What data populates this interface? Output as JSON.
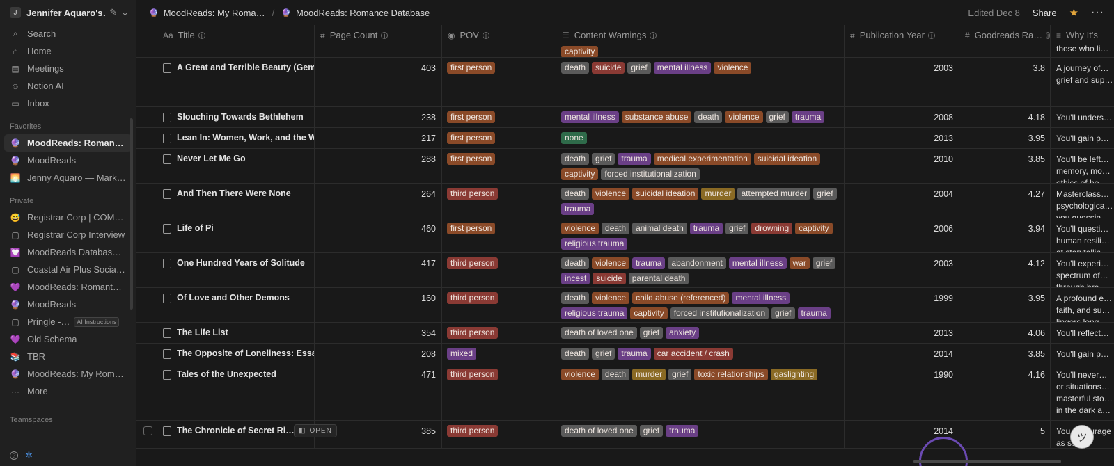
{
  "workspace": {
    "initial": "J",
    "name": "Jennifer Aquaro's…"
  },
  "sidebar": {
    "nav": [
      {
        "label": "Search",
        "icon": "search-icon"
      },
      {
        "label": "Home",
        "icon": "home-icon"
      },
      {
        "label": "Meetings",
        "icon": "meetings-icon"
      },
      {
        "label": "Notion AI",
        "icon": "notion-ai-icon"
      },
      {
        "label": "Inbox",
        "icon": "inbox-icon"
      }
    ],
    "favorites_label": "Favorites",
    "favorites": [
      {
        "label": "MoodReads: Romance Database",
        "icon": "crystal-ball-icon",
        "active": true
      },
      {
        "label": "MoodReads",
        "icon": "crystal-ball-icon"
      },
      {
        "label": "Jenny Aquaro — Marketing",
        "icon": "sunrise-icon"
      }
    ],
    "private_label": "Private",
    "private": [
      {
        "label": "Registrar Corp | COMPLIANCE",
        "icon": "emoji-icon"
      },
      {
        "label": "Registrar Corp Interview",
        "icon": "doc-icon"
      },
      {
        "label": "MoodReads Database Structure",
        "icon": "heart-icon"
      },
      {
        "label": "Coastal Air Plus Social Media",
        "icon": "doc-icon"
      },
      {
        "label": "MoodReads: Romantasy",
        "icon": "purple-heart-icon"
      },
      {
        "label": "MoodReads",
        "icon": "crystal-ball-icon"
      },
      {
        "label": "Pringle -…",
        "icon": "doc-icon",
        "badge": "AI Instructions"
      },
      {
        "label": "Old Schema",
        "icon": "purple-heart-icon"
      },
      {
        "label": "TBR",
        "icon": "books-icon"
      },
      {
        "label": "MoodReads: My Romance",
        "icon": "crystal-ball-icon"
      },
      {
        "label": "More",
        "icon": "more-icon"
      }
    ],
    "teamspaces_label": "Teamspaces"
  },
  "breadcrumb": [
    "MoodReads: My Roma…",
    "MoodReads: Romance Database"
  ],
  "topbar": {
    "edited": "Edited Dec 8",
    "share": "Share"
  },
  "columns": [
    {
      "label": "Title",
      "icon": "Aa"
    },
    {
      "label": "Page Count",
      "icon": "#"
    },
    {
      "label": "POV",
      "icon": "◉"
    },
    {
      "label": "Content Warnings",
      "icon": "☰"
    },
    {
      "label": "Publication Year",
      "icon": "#"
    },
    {
      "label": "Goodreads Ra…",
      "icon": "#"
    },
    {
      "label": "Why It's",
      "icon": "≡"
    }
  ],
  "tag_colors": {
    "death": "#5a5a5a",
    "suicide": "#8a3a34",
    "grief": "#5a5a5a",
    "mental illness": "#6a3f86",
    "violence": "#8a4a28",
    "substance abuse": "#8a4a28",
    "trauma": "#6a3f86",
    "none": "#2f6b4a",
    "medical experimentation": "#8a4a28",
    "suicidal ideation": "#8a4a28",
    "captivity": "#8a4a28",
    "forced institutionalization": "#5a5a5a",
    "murder": "#8a6a24",
    "attempted murder": "#5a5a5a",
    "animal death": "#5a5a5a",
    "drowning": "#8a3a34",
    "religious trauma": "#6a3f86",
    "abandonment": "#5a5a5a",
    "war": "#8a4a28",
    "incest": "#6a3f86",
    "parental death": "#5a5a5a",
    "child abuse (referenced)": "#8a4a28",
    "death of loved one": "#5a5a5a",
    "anxiety": "#6a3f86",
    "car accident / crash": "#8a3a34",
    "toxic relationships": "#8a4a28",
    "gaslighting": "#8a6a24",
    "first person": "#8a4a28",
    "third person": "#8a3a34",
    "mixed": "#6a3f86"
  },
  "rows": [
    {
      "title": "",
      "pages": "",
      "pov": "",
      "cw": [
        "captivity"
      ],
      "year": "",
      "rating": "",
      "why": "those who li… unimaginabl…",
      "h": 23,
      "partial": true
    },
    {
      "title": "A Great and Terrible Beauty (Gemma Doyle)",
      "pages": "403",
      "pov": "first person",
      "cw": [
        "death",
        "suicide",
        "grief",
        "mental illness",
        "violence"
      ],
      "year": "2003",
      "rating": "3.8",
      "why": "A journey of… grief and sup…",
      "h": 71
    },
    {
      "title": "Slouching Towards Bethlehem",
      "pages": "238",
      "pov": "first person",
      "cw": [
        "mental illness",
        "substance abuse",
        "death",
        "violence",
        "grief",
        "trauma"
      ],
      "year": "2008",
      "rating": "4.18",
      "why": "You'll unders…",
      "h": 30
    },
    {
      "title": "Lean In: Women, Work, and the Will to Lead",
      "pages": "217",
      "pov": "first person",
      "cw": [
        "none"
      ],
      "year": "2013",
      "rating": "3.95",
      "why": "You'll gain p…",
      "h": 30
    },
    {
      "title": "Never Let Me Go",
      "pages": "288",
      "pov": "first person",
      "cw": [
        "death",
        "grief",
        "trauma",
        "medical experimentation",
        "suicidal ideation",
        "captivity",
        "forced institutionalization"
      ],
      "year": "2010",
      "rating": "3.85",
      "why": "You'll be left… memory, mo… ethics of ho…",
      "h": 50
    },
    {
      "title": "And Then There Were None",
      "pages": "264",
      "pov": "third person",
      "cw": [
        "death",
        "violence",
        "suicidal ideation",
        "murder",
        "attempted murder",
        "grief",
        "trauma"
      ],
      "year": "2004",
      "rating": "4.27",
      "why": "Masterclass… psychologica… you guessin…",
      "h": 50
    },
    {
      "title": "Life of Pi",
      "pages": "460",
      "pov": "first person",
      "cw": [
        "violence",
        "death",
        "animal death",
        "trauma",
        "grief",
        "drowning",
        "captivity",
        "religious trauma"
      ],
      "year": "2006",
      "rating": "3.94",
      "why": "You'll questi… human resili… at storytellin…",
      "h": 50
    },
    {
      "title": "One Hundred Years of Solitude",
      "pages": "417",
      "pov": "third person",
      "cw": [
        "death",
        "violence",
        "trauma",
        "abandonment",
        "mental illness",
        "war",
        "grief",
        "incest",
        "suicide",
        "parental death"
      ],
      "year": "2003",
      "rating": "4.12",
      "why": "You'll experi… spectrum of… through bre…",
      "h": 50
    },
    {
      "title": "Of Love and Other Demons",
      "pages": "160",
      "pov": "third person",
      "cw": [
        "death",
        "violence",
        "child abuse (referenced)",
        "mental illness",
        "religious trauma",
        "captivity",
        "forced institutionalization",
        "grief",
        "trauma"
      ],
      "year": "1999",
      "rating": "3.95",
      "why": "A profound e… faith, and su… lingers long…",
      "h": 50
    },
    {
      "title": "The Life List",
      "pages": "354",
      "pov": "third person",
      "cw": [
        "death of loved one",
        "grief",
        "anxiety"
      ],
      "year": "2013",
      "rating": "4.06",
      "why": "You'll reflect…",
      "h": 30
    },
    {
      "title": "The Opposite of Loneliness: Essays and Stories",
      "pages": "208",
      "pov": "mixed",
      "cw": [
        "death",
        "grief",
        "trauma",
        "car accident / crash"
      ],
      "year": "2014",
      "rating": "3.85",
      "why": "You'll gain p…",
      "h": 30
    },
    {
      "title": "Tales of the Unexpected",
      "pages": "471",
      "pov": "third person",
      "cw": [
        "violence",
        "death",
        "murder",
        "grief",
        "toxic relationships",
        "gaslighting"
      ],
      "year": "1990",
      "rating": "4.16",
      "why": "You'll never… or situations… masterful sto… in the dark a…",
      "h": 81
    },
    {
      "title": "The Chronicle of Secret Ri…",
      "pages": "385",
      "pov": "third person",
      "cw": [
        "death of loved one",
        "grief",
        "trauma"
      ],
      "year": "2014",
      "rating": "5",
      "why": "You… courage as s…",
      "h": 40,
      "hovered": true
    }
  ],
  "open_label": "OPEN"
}
